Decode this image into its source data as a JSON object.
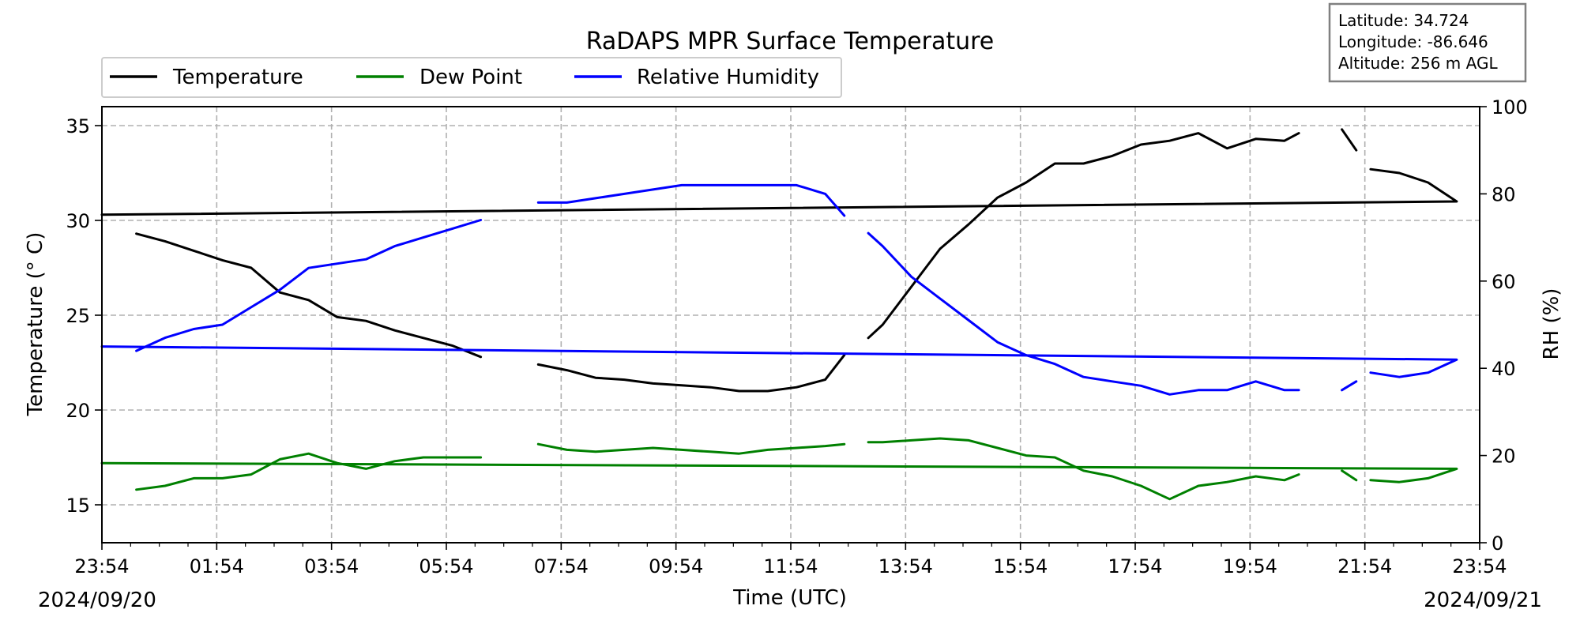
{
  "chart_data": {
    "type": "line",
    "title": "RaDAPS MPR Surface Temperature",
    "xlabel": "Time (UTC)",
    "ylabel_left": "Temperature ($^\\circ$C)",
    "ylabel_left_display": "Temperature (° C)",
    "ylabel_right": "RH (%)",
    "start_date": "2024/09/20",
    "end_date": "2024/09/21",
    "x_ticks": [
      "23:54",
      "01:54",
      "03:54",
      "05:54",
      "07:54",
      "09:54",
      "11:54",
      "13:54",
      "15:54",
      "17:54",
      "19:54",
      "21:54",
      "23:54"
    ],
    "ylim_left": [
      13,
      36
    ],
    "yticks_left": [
      15,
      20,
      25,
      30,
      35
    ],
    "ylim_right": [
      0,
      100
    ],
    "yticks_right": [
      0,
      20,
      40,
      60,
      80,
      100
    ],
    "grid": true,
    "legend_position": "top-left",
    "info_box": {
      "latitude": "Latitude: 34.724",
      "longitude": "Longitude: -86.646",
      "altitude": "Altitude: 256 m AGL"
    },
    "series": [
      {
        "name": "Temperature",
        "axis": "left",
        "color": "#000000",
        "segments": [
          {
            "x": [
              "00:30",
              "01:00",
              "01:30",
              "02:00",
              "02:30",
              "03:00",
              "03:30",
              "04:00",
              "04:30",
              "05:00",
              "05:30",
              "06:00",
              "06:30"
            ],
            "y": [
              29.3,
              28.9,
              28.4,
              27.9,
              27.5,
              26.2,
              25.8,
              24.9,
              24.7,
              24.2,
              23.8,
              23.4,
              22.8
            ]
          },
          {
            "x": [
              "07:30",
              "08:00",
              "08:30",
              "09:00",
              "09:30",
              "10:00",
              "10:30",
              "11:00",
              "11:30",
              "12:00",
              "12:30",
              "12:50"
            ],
            "y": [
              22.4,
              22.1,
              21.7,
              21.6,
              21.4,
              21.3,
              21.2,
              21.0,
              21.0,
              21.2,
              21.6,
              22.9
            ]
          },
          {
            "x": [
              "13:15",
              "13:30",
              "14:00",
              "14:30",
              "15:00",
              "15:30",
              "16:00",
              "16:30",
              "17:00",
              "17:30",
              "18:00",
              "18:30",
              "19:00",
              "19:30",
              "20:00",
              "20:30",
              "20:45"
            ],
            "y": [
              23.8,
              24.5,
              26.5,
              28.5,
              29.8,
              31.2,
              32.0,
              33.0,
              33.0,
              33.4,
              34.0,
              34.2,
              34.6,
              33.8,
              34.3,
              34.2,
              34.6
            ]
          },
          {
            "x": [
              "21:30",
              "21:45"
            ],
            "y": [
              34.8,
              33.7
            ]
          },
          {
            "x": [
              "22:00",
              "22:30",
              "23:00",
              "23:30",
              "23:54"
            ],
            "y": [
              32.7,
              32.5,
              32.0,
              31.0,
              30.3
            ]
          }
        ]
      },
      {
        "name": "Dew Point",
        "axis": "left",
        "color": "#008000",
        "segments": [
          {
            "x": [
              "00:30",
              "01:00",
              "01:30",
              "02:00",
              "02:30",
              "03:00",
              "03:30",
              "04:00",
              "04:30",
              "05:00",
              "05:30",
              "06:00",
              "06:30"
            ],
            "y": [
              15.8,
              16.0,
              16.4,
              16.4,
              16.6,
              17.4,
              17.7,
              17.2,
              16.9,
              17.3,
              17.5,
              17.5,
              17.5
            ]
          },
          {
            "x": [
              "07:30",
              "08:00",
              "08:30",
              "09:00",
              "09:30",
              "10:00",
              "10:30",
              "11:00",
              "11:30",
              "12:00",
              "12:30",
              "12:50"
            ],
            "y": [
              18.2,
              17.9,
              17.8,
              17.9,
              18.0,
              17.9,
              17.8,
              17.7,
              17.9,
              18.0,
              18.1,
              18.2
            ]
          },
          {
            "x": [
              "13:15",
              "13:30",
              "14:00",
              "14:30",
              "15:00",
              "15:30",
              "16:00",
              "16:30",
              "17:00",
              "17:30",
              "18:00",
              "18:30",
              "19:00",
              "19:30",
              "20:00",
              "20:30",
              "20:45"
            ],
            "y": [
              18.3,
              18.3,
              18.4,
              18.5,
              18.4,
              18.0,
              17.6,
              17.5,
              16.8,
              16.5,
              16.0,
              15.3,
              16.0,
              16.2,
              16.5,
              16.3,
              16.6
            ]
          },
          {
            "x": [
              "21:30",
              "21:45"
            ],
            "y": [
              16.8,
              16.3
            ]
          },
          {
            "x": [
              "22:00",
              "22:30",
              "23:00",
              "23:30",
              "23:54"
            ],
            "y": [
              16.3,
              16.2,
              16.4,
              16.9,
              17.2
            ]
          }
        ]
      },
      {
        "name": "Relative Humidity",
        "axis": "right",
        "color": "#0000ff",
        "segments": [
          {
            "x": [
              "00:30",
              "01:00",
              "01:30",
              "02:00",
              "02:30",
              "03:00",
              "03:30",
              "04:00",
              "04:30",
              "05:00",
              "05:30",
              "06:00",
              "06:30"
            ],
            "y": [
              44,
              47,
              49,
              50,
              54,
              58,
              63,
              64,
              65,
              68,
              70,
              72,
              74
            ]
          },
          {
            "x": [
              "07:30",
              "08:00",
              "08:30",
              "09:00",
              "09:30",
              "10:00",
              "10:30",
              "11:00",
              "11:30",
              "12:00",
              "12:30",
              "12:50"
            ],
            "y": [
              78,
              78,
              79,
              80,
              81,
              82,
              82,
              82,
              82,
              82,
              80,
              75
            ]
          },
          {
            "x": [
              "13:15",
              "13:30",
              "14:00",
              "14:30",
              "15:00",
              "15:30",
              "16:00",
              "16:30",
              "17:00",
              "17:30",
              "18:00",
              "18:30",
              "19:00",
              "19:30",
              "20:00",
              "20:30",
              "20:45"
            ],
            "y": [
              71,
              68,
              61,
              56,
              51,
              46,
              43,
              41,
              38,
              37,
              36,
              34,
              35,
              35,
              37,
              35,
              35
            ]
          },
          {
            "x": [
              "21:30",
              "21:45"
            ],
            "y": [
              35,
              37
            ]
          },
          {
            "x": [
              "22:00",
              "22:30",
              "23:00",
              "23:30",
              "23:54"
            ],
            "y": [
              39,
              38,
              39,
              42,
              45
            ]
          }
        ]
      }
    ]
  }
}
